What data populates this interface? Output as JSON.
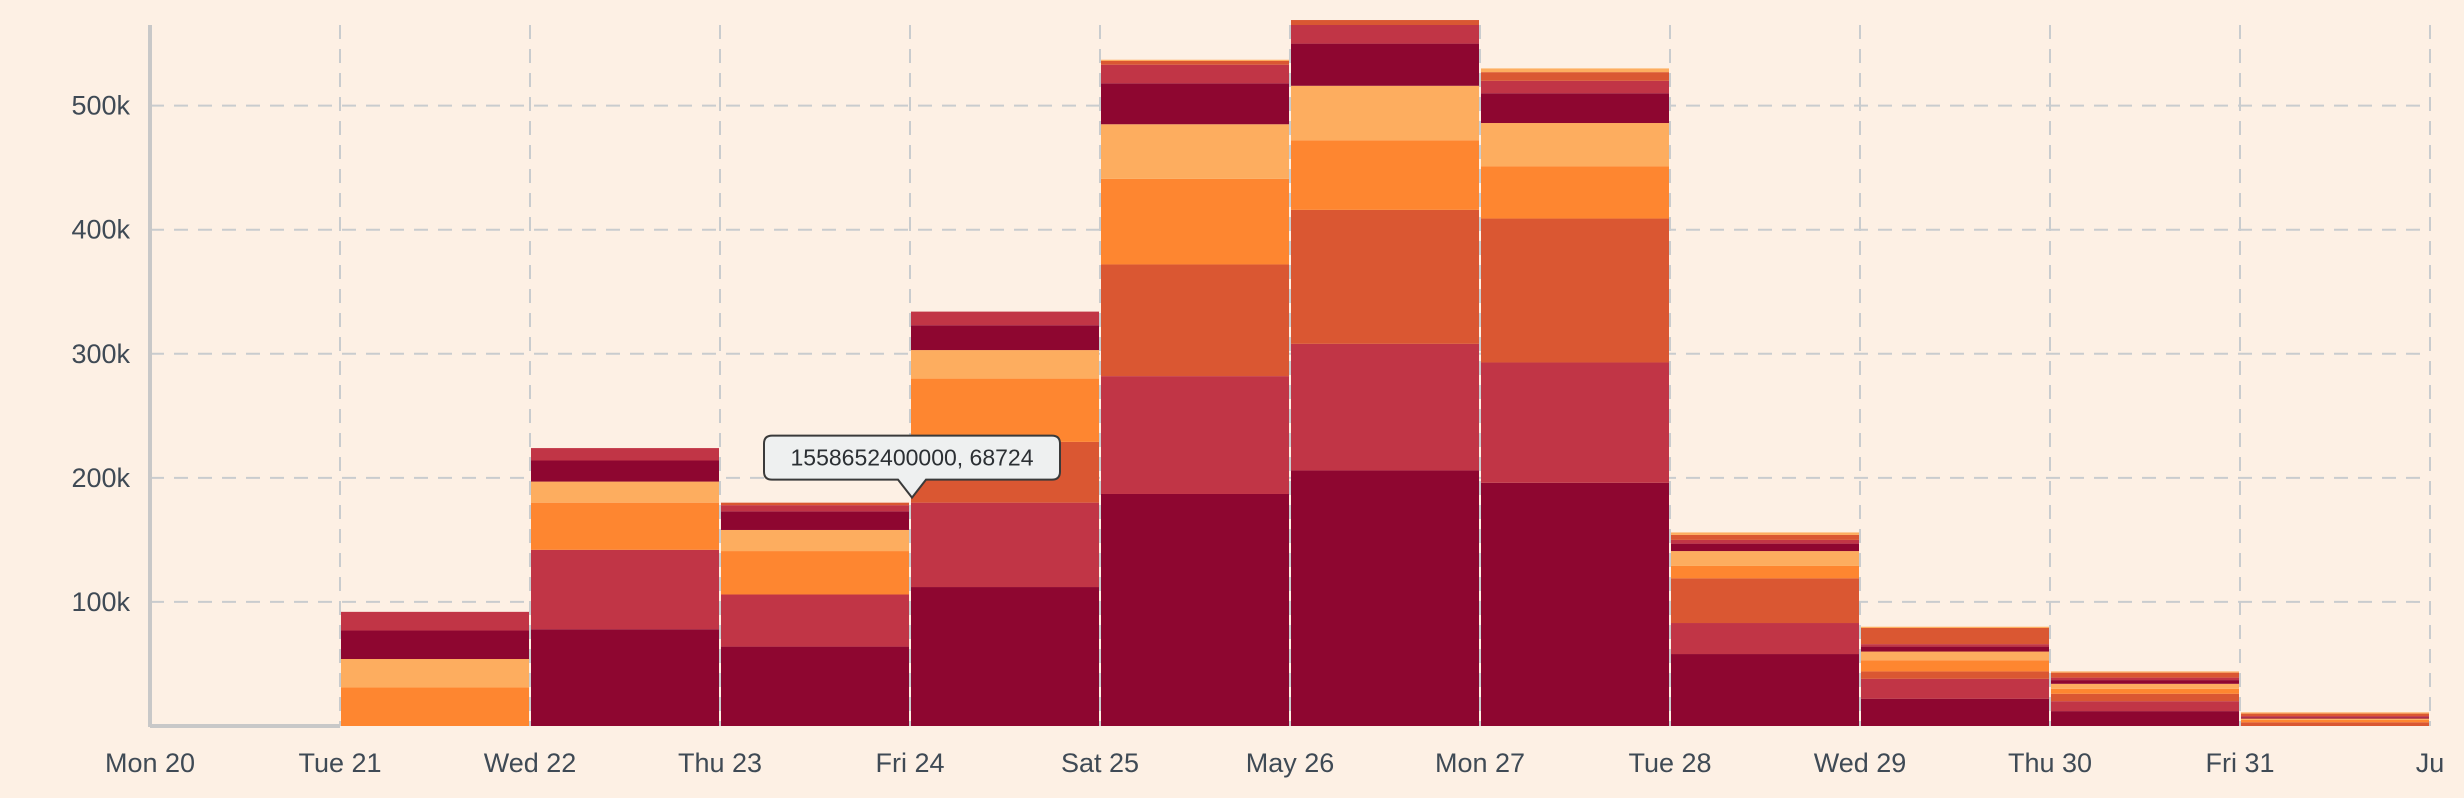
{
  "chart_data": {
    "type": "bar",
    "stacked": true,
    "title": "",
    "xlabel": "",
    "ylabel": "",
    "ylim": [
      0,
      565000
    ],
    "grid": true,
    "y_ticks": [
      {
        "value": 100000,
        "label": "100k"
      },
      {
        "value": 200000,
        "label": "200k"
      },
      {
        "value": 300000,
        "label": "300k"
      },
      {
        "value": 400000,
        "label": "400k"
      },
      {
        "value": 500000,
        "label": "500k"
      }
    ],
    "x_ticks": [
      "Mon 20",
      "Tue 21",
      "Wed 22",
      "Thu 23",
      "Fri 24",
      "Sat 25",
      "May 26",
      "Mon 27",
      "Tue 28",
      "Wed 29",
      "Thu 30",
      "Fri 31",
      "Ju"
    ],
    "categories": [
      "Mon 20",
      "Tue 21",
      "Wed 22",
      "Thu 23",
      "Fri 24",
      "Sat 25",
      "May 26",
      "Mon 27",
      "Tue 28",
      "Wed 29",
      "Thu 30",
      "Fri 31"
    ],
    "series": [
      {
        "color": "#8e0630",
        "values": [
          0,
          0,
          78000,
          64000,
          112000,
          187000,
          206000,
          196000,
          58000,
          22000,
          12000,
          0
        ]
      },
      {
        "color": "#c13546",
        "values": [
          0,
          0,
          64000,
          42000,
          68000,
          95000,
          102000,
          97000,
          25000,
          16000,
          8000,
          0
        ]
      },
      {
        "color": "#da5732",
        "values": [
          0,
          0,
          0,
          0,
          49000,
          90000,
          108000,
          116000,
          36000,
          6000,
          6000,
          3000
        ]
      },
      {
        "color": "#fe8630",
        "values": [
          0,
          31000,
          38000,
          35000,
          51000,
          69000,
          56000,
          42000,
          10000,
          9000,
          4000,
          2000
        ]
      },
      {
        "color": "#fdad5f",
        "values": [
          0,
          23000,
          17000,
          17000,
          23000,
          44000,
          44000,
          35000,
          12000,
          7000,
          4000,
          1000
        ]
      },
      {
        "color": "#8e0630",
        "values": [
          0,
          23000,
          17000,
          15000,
          20000,
          33000,
          34000,
          24000,
          6000,
          4000,
          3000,
          1000
        ]
      },
      {
        "color": "#c13546",
        "values": [
          0,
          15000,
          10000,
          5000,
          11000,
          15000,
          15000,
          10000,
          3000,
          2000,
          2000,
          1000
        ]
      },
      {
        "color": "#da5732",
        "values": [
          0,
          0,
          0,
          2000,
          0,
          3000,
          4000,
          7000,
          4000,
          13000,
          4000,
          2000
        ]
      },
      {
        "color": "#fdad5f",
        "values": [
          0,
          0,
          0,
          0,
          0,
          1000,
          0,
          3000,
          2000,
          1000,
          1000,
          1000
        ]
      }
    ],
    "tooltip": {
      "text": "1558652400000, 68724",
      "category": "Fri 24",
      "value": 180000
    },
    "colors": {
      "background": "#fdf0e4",
      "grid": "#c9ccce",
      "axis": "#c8c8c8",
      "tick_text": "#3f4a55",
      "tooltip_bg": "#eef0f0",
      "tooltip_border": "#3a3a3a"
    }
  }
}
